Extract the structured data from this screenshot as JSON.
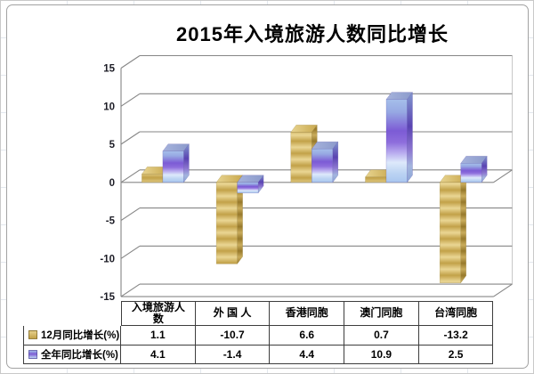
{
  "title": "2015年入境旅游人数同比增长",
  "chart_data": {
    "type": "bar",
    "variant": "3d-clustered-column",
    "title": "2015年入境旅游人数同比增长",
    "categories": [
      "入境旅游人数",
      "外 国 人",
      "香港同胞",
      "澳门同胞",
      "台湾同胞"
    ],
    "series": [
      {
        "name": "12月同比增长(%)",
        "values": [
          1.1,
          -10.7,
          6.6,
          0.7,
          -13.2
        ],
        "color": "#C6A84E"
      },
      {
        "name": "全年同比增长(%)",
        "values": [
          4.1,
          -1.4,
          4.4,
          10.9,
          2.5
        ],
        "color": "#7D5FD6"
      }
    ],
    "ylim": [
      -15,
      15
    ],
    "yticks": [
      15,
      10,
      5,
      0,
      -5,
      -10,
      -15
    ],
    "grid": true,
    "legend_position": "data-table-left",
    "gridline_color": "#868686",
    "axis_label_color": "#1d1d26",
    "table_border_color": "#3d3d3d"
  }
}
